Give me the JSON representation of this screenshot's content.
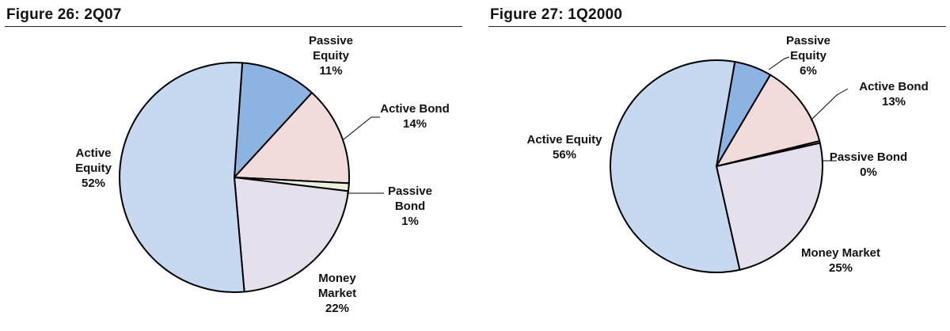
{
  "chart_data": [
    {
      "type": "pie",
      "title": "Figure 26: 2Q07",
      "slices": [
        {
          "label": "Active Equity",
          "value_label": "52%",
          "value": 52.5,
          "color": "#c6d9f1"
        },
        {
          "label": "Passive Equity",
          "value_label": "11%",
          "value": 10.7,
          "color": "#8db3e2"
        },
        {
          "label": "Active Bond",
          "value_label": "14%",
          "value": 14.0,
          "color": "#f2dcdb"
        },
        {
          "label": "Passive Bond",
          "value_label": "1%",
          "value": 1.1,
          "color": "#ebf1de"
        },
        {
          "label": "Money Market",
          "value_label": "22%",
          "value": 21.7,
          "color": "#e5e0ec"
        }
      ]
    },
    {
      "type": "pie",
      "title": "Figure 27: 1Q2000",
      "slices": [
        {
          "label": "Active Equity",
          "value_label": "56%",
          "value": 56.3,
          "color": "#c6d9f1"
        },
        {
          "label": "Passive Equity",
          "value_label": "6%",
          "value": 5.7,
          "color": "#8db3e2"
        },
        {
          "label": "Active Bond",
          "value_label": "13%",
          "value": 12.7,
          "color": "#f2dcdb"
        },
        {
          "label": "Passive Bond",
          "value_label": "0%",
          "value": 0.3,
          "color": "#ebf1de"
        },
        {
          "label": "Money Market",
          "value_label": "25%",
          "value": 25.0,
          "color": "#e5e0ec"
        }
      ]
    }
  ]
}
